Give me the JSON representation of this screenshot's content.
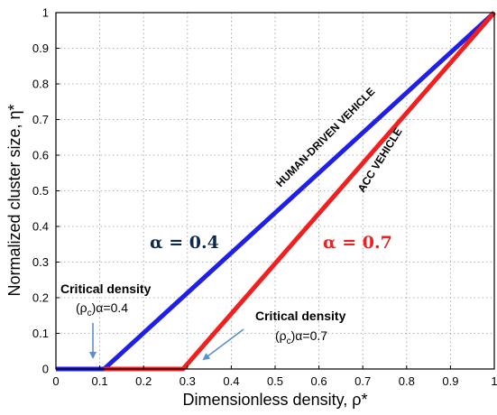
{
  "chart_data": {
    "type": "line",
    "xlabel": "Dimensionless density, ρ*",
    "ylabel": "Normalized cluster size, η*",
    "xlim": [
      0,
      1
    ],
    "ylim": [
      0,
      1
    ],
    "xticks": [
      0,
      0.1,
      0.2,
      0.3,
      0.4,
      0.5,
      0.6,
      0.7,
      0.8,
      0.9,
      1
    ],
    "yticks": [
      0,
      0.1,
      0.2,
      0.3,
      0.4,
      0.5,
      0.6,
      0.7,
      0.8,
      0.9,
      1
    ],
    "xtick_labels": [
      "0",
      "0.1",
      "0.2",
      "0.3",
      "0.4",
      "0.5",
      "0.6",
      "0.7",
      "0.8",
      "0.9",
      "1"
    ],
    "ytick_labels": [
      "0",
      "0.1",
      "0.2",
      "0.3",
      "0.4",
      "0.5",
      "0.6",
      "0.7",
      "0.8",
      "0.9",
      "1"
    ],
    "grid": "dotted",
    "series": [
      {
        "name": "HUMAN-DRIVEN VEHICLE",
        "color": "#1f1fe6",
        "x": [
          0,
          0.11,
          1
        ],
        "y": [
          0,
          0,
          1
        ]
      },
      {
        "name": "ACC VEHICLE",
        "color": "#f02020",
        "x": [
          0.11,
          0.29,
          1
        ],
        "y": [
          0,
          0,
          1
        ]
      }
    ],
    "annotations": {
      "alpha_blue": "α = 0.4",
      "alpha_red": "α = 0.7",
      "critical_1_title": "Critical density",
      "critical_1_symbol": "(ρ",
      "critical_1_c": "c",
      "critical_1_sub": ")α=0.4",
      "critical_2_title": "Critical density",
      "critical_2_symbol": "(ρ",
      "critical_2_c": "c",
      "critical_2_sub": ")α=0.7",
      "arrow_color": "#5b8fd0"
    }
  }
}
